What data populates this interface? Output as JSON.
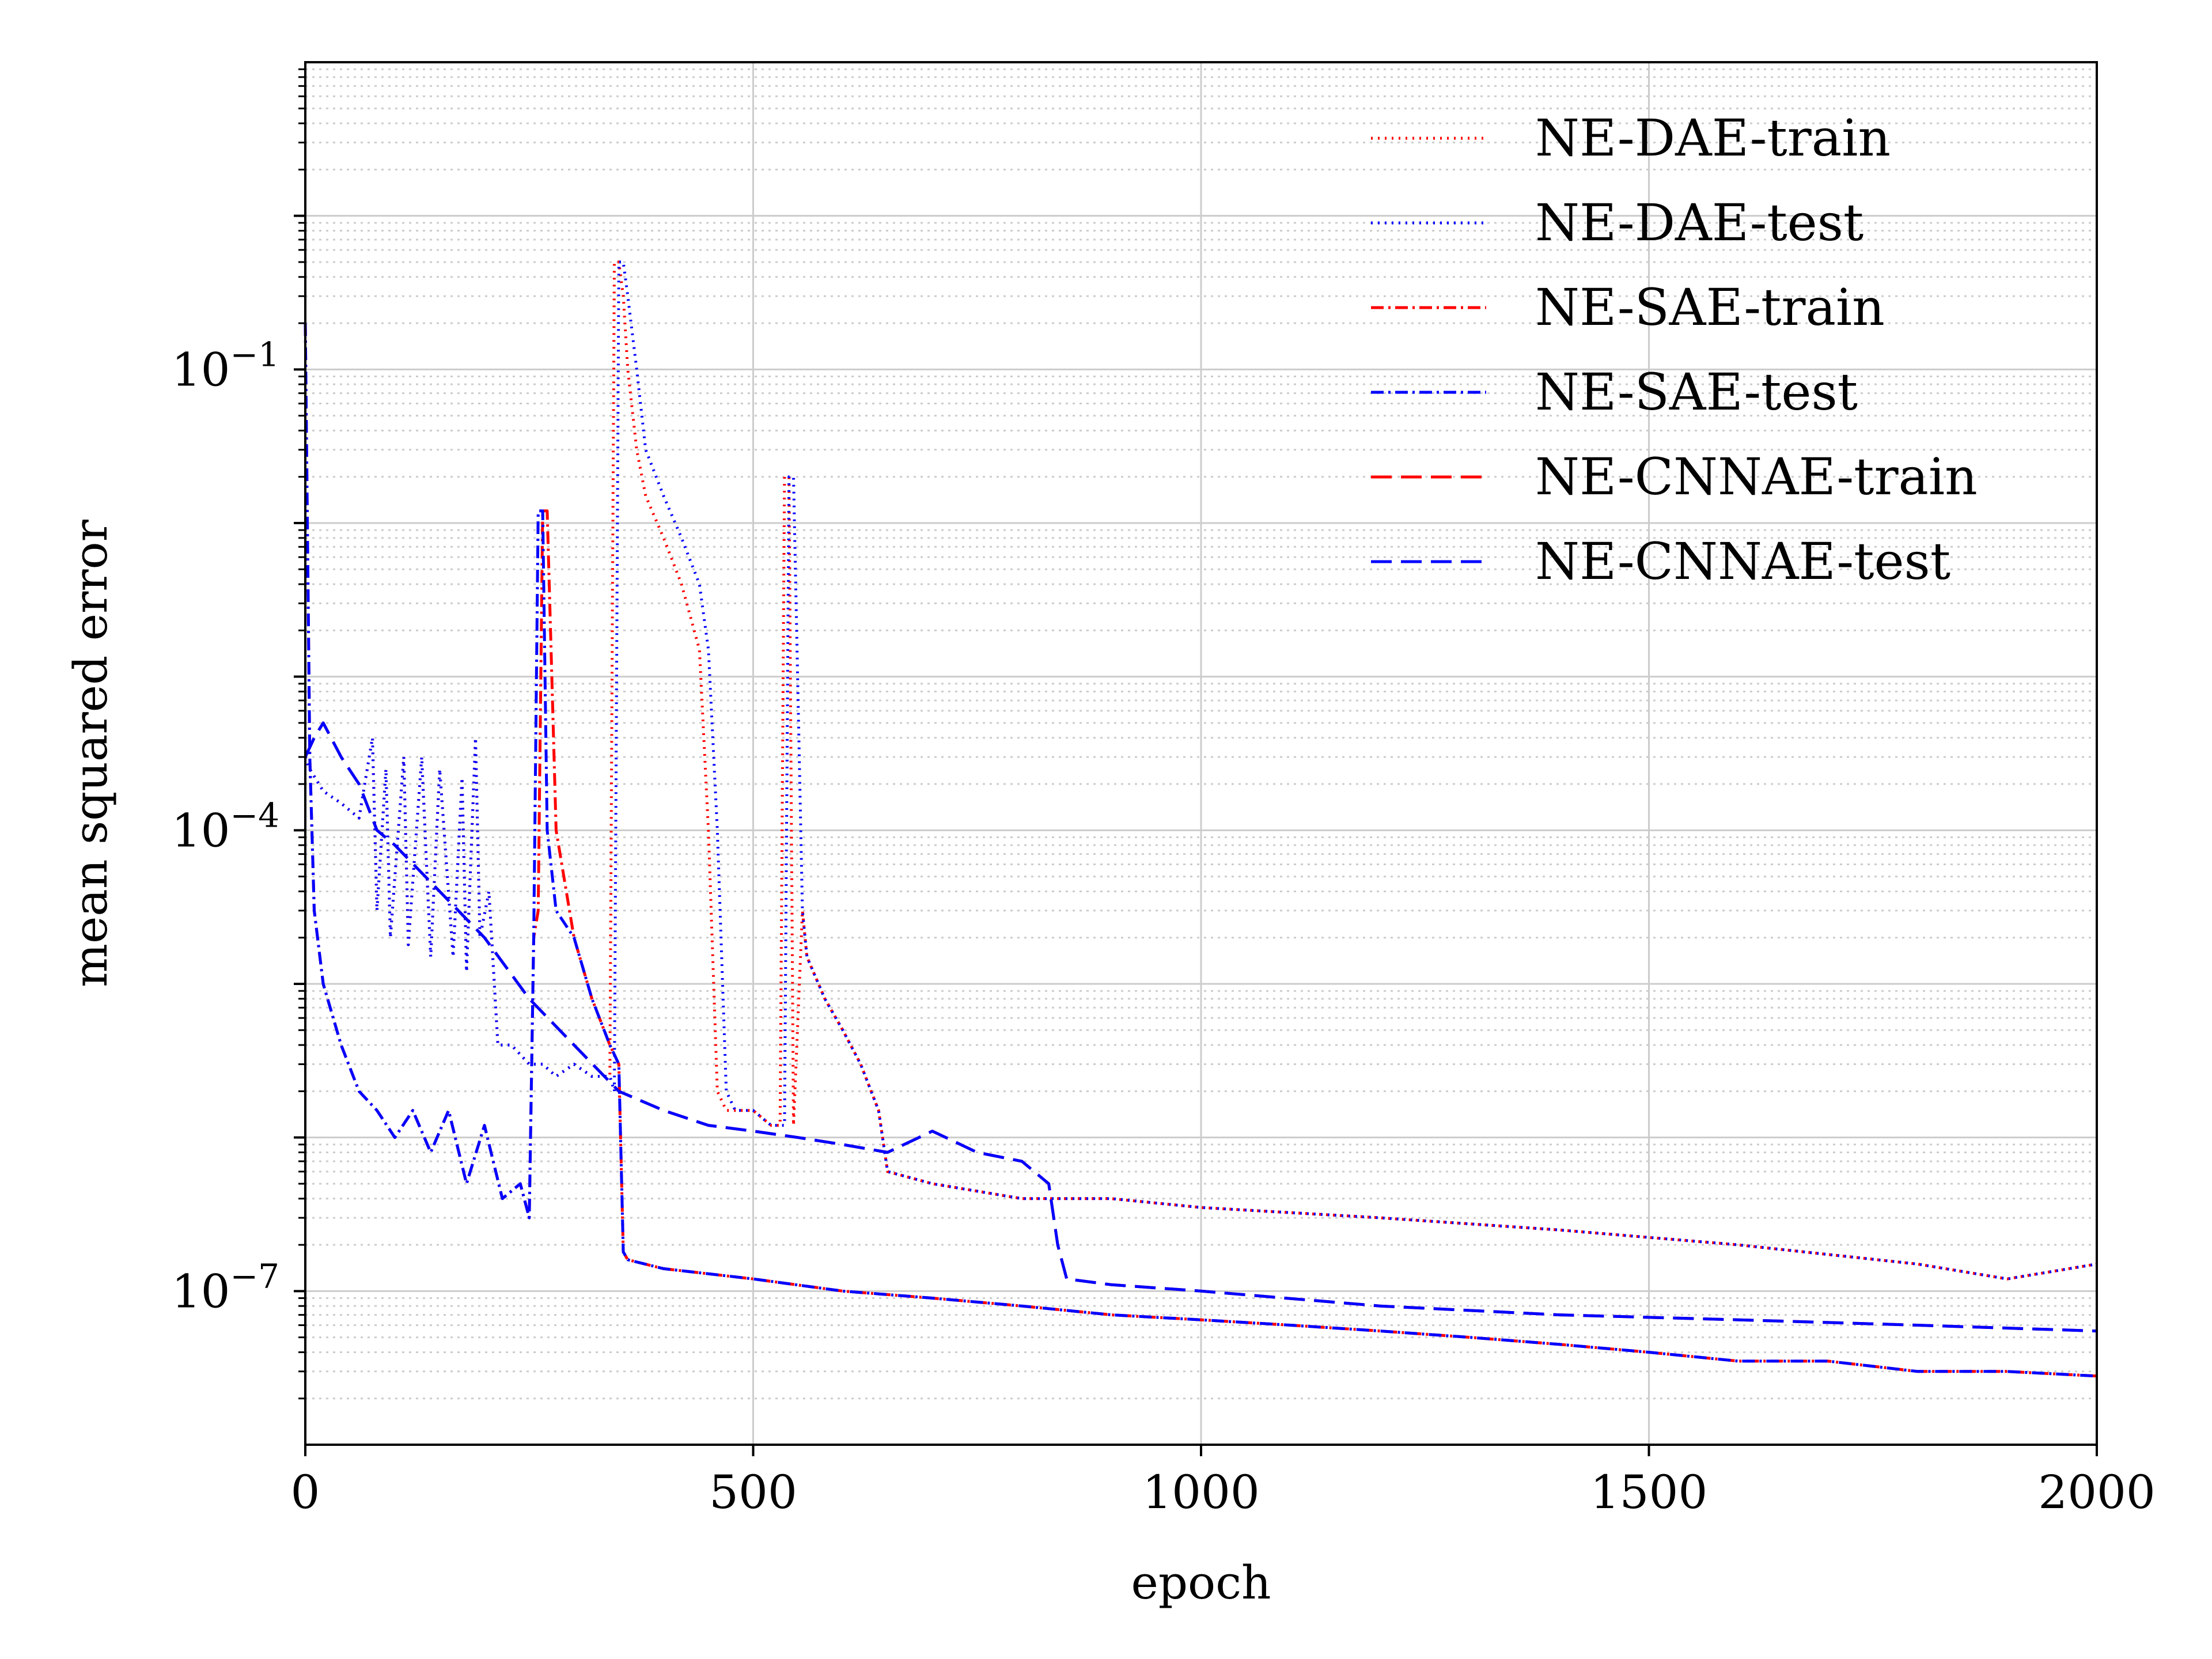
{
  "chart_data": {
    "type": "line",
    "xlabel": "epoch",
    "ylabel": "mean squared error",
    "yscale": "log",
    "xlim": [
      0,
      2000
    ],
    "ylim_exponent": [
      -8,
      1
    ],
    "x_ticks": [
      0,
      500,
      1000,
      1500,
      2000
    ],
    "x_tick_labels": [
      "0",
      "500",
      "1000",
      "1500",
      "2000"
    ],
    "y_tick_exponents": [
      -7,
      -4,
      -1
    ],
    "y_tick_labels": [
      {
        "base": "10",
        "exp": "−7"
      },
      {
        "base": "10",
        "exp": "−4"
      },
      {
        "base": "10",
        "exp": "−1"
      }
    ],
    "grid": true,
    "legend_position": "top-right",
    "series": [
      {
        "name": "NE-DAE-train",
        "color": "#ff0000",
        "dash": "dotted",
        "x": [
          0,
          5,
          20,
          40,
          60,
          75,
          80,
          90,
          95,
          110,
          115,
          130,
          140,
          150,
          165,
          175,
          180,
          190,
          195,
          205,
          215,
          220,
          230,
          250,
          265,
          280,
          300,
          320,
          340,
          345,
          350,
          355,
          360,
          370,
          380,
          400,
          420,
          440,
          450,
          460,
          470,
          480,
          500,
          520,
          530,
          535,
          540,
          545,
          555,
          560,
          580,
          600,
          620,
          640,
          650,
          700,
          800,
          900,
          1000,
          1200,
          1400,
          1600,
          1800,
          1900,
          2000
        ],
        "y": [
          0.0003,
          0.00025,
          0.00018,
          0.00015,
          0.00012,
          0.0004,
          3e-05,
          0.00025,
          2e-05,
          0.0003,
          1.8e-05,
          0.0003,
          1.5e-05,
          0.00025,
          1.5e-05,
          0.00022,
          1.2e-05,
          0.0004,
          2e-05,
          4e-05,
          4e-06,
          4e-06,
          4e-06,
          3e-06,
          3e-06,
          2.5e-06,
          3e-06,
          2.5e-06,
          2.5e-06,
          0.5,
          0.5,
          0.3,
          0.1,
          0.03,
          0.015,
          0.008,
          0.004,
          0.0015,
          0.0001,
          2e-06,
          1.5e-06,
          1.5e-06,
          1.5e-06,
          1.2e-06,
          1.2e-06,
          0.02,
          0.02,
          1.2e-06,
          3e-05,
          1.5e-05,
          8e-06,
          5e-06,
          3e-06,
          1.5e-06,
          6e-07,
          5e-07,
          4e-07,
          4e-07,
          3.5e-07,
          3e-07,
          2.5e-07,
          2e-07,
          1.5e-07,
          1.2e-07,
          1.5e-07
        ]
      },
      {
        "name": "NE-DAE-test",
        "color": "#0000ff",
        "dash": "dotted",
        "x": [
          0,
          5,
          20,
          40,
          60,
          75,
          80,
          90,
          95,
          110,
          115,
          130,
          140,
          150,
          165,
          175,
          180,
          190,
          195,
          205,
          215,
          220,
          230,
          250,
          265,
          280,
          300,
          320,
          340,
          345,
          350,
          355,
          360,
          370,
          380,
          400,
          420,
          440,
          450,
          460,
          470,
          480,
          500,
          520,
          530,
          535,
          540,
          545,
          555,
          560,
          580,
          600,
          620,
          640,
          650,
          700,
          800,
          900,
          1000,
          1200,
          1400,
          1600,
          1800,
          1900,
          2000
        ],
        "y": [
          0.0003,
          0.00025,
          0.00018,
          0.00015,
          0.00012,
          0.0004,
          3e-05,
          0.00025,
          2e-05,
          0.0003,
          1.8e-05,
          0.0003,
          1.5e-05,
          0.00025,
          1.5e-05,
          0.00022,
          1.2e-05,
          0.0004,
          2e-05,
          4e-05,
          4e-06,
          4e-06,
          4e-06,
          3e-06,
          3e-06,
          2.5e-06,
          3e-06,
          2.5e-06,
          2.5e-06,
          2e-06,
          0.5,
          0.5,
          0.3,
          0.1,
          0.03,
          0.015,
          0.008,
          0.004,
          0.0015,
          0.0001,
          2e-06,
          1.5e-06,
          1.5e-06,
          1.2e-06,
          1.2e-06,
          1.2e-06,
          0.02,
          0.02,
          3e-05,
          1.5e-05,
          8e-06,
          5e-06,
          3e-06,
          1.5e-06,
          6e-07,
          5e-07,
          4e-07,
          4e-07,
          3.5e-07,
          3e-07,
          2.5e-07,
          2e-07,
          1.5e-07,
          1.2e-07,
          1.5e-07
        ]
      },
      {
        "name": "NE-SAE-train",
        "color": "#ff0000",
        "dash": "dashdot",
        "x": [
          0,
          5,
          10,
          20,
          40,
          60,
          80,
          100,
          120,
          140,
          160,
          180,
          200,
          220,
          240,
          250,
          255,
          260,
          265,
          270,
          280,
          300,
          320,
          340,
          350,
          355,
          360,
          400,
          500,
          600,
          700,
          800,
          900,
          1000,
          1100,
          1200,
          1300,
          1400,
          1500,
          1600,
          1700,
          1800,
          1900,
          2000
        ],
        "y": [
          0.2,
          0.0003,
          3e-05,
          1e-05,
          4e-06,
          2e-06,
          1.5e-06,
          1e-06,
          1.5e-06,
          8e-07,
          1.5e-06,
          5e-07,
          1.2e-06,
          4e-07,
          5e-07,
          3e-07,
          2e-05,
          3e-05,
          0.012,
          0.012,
          0.0001,
          2e-05,
          8e-06,
          4e-06,
          3e-06,
          1.8e-07,
          1.6e-07,
          1.4e-07,
          1.2e-07,
          1e-07,
          9e-08,
          8e-08,
          7e-08,
          6.5e-08,
          6e-08,
          5.5e-08,
          5e-08,
          4.5e-08,
          4e-08,
          3.5e-08,
          3.5e-08,
          3e-08,
          3e-08,
          2.8e-08
        ]
      },
      {
        "name": "NE-SAE-test",
        "color": "#0000ff",
        "dash": "dashdot",
        "x": [
          0,
          5,
          10,
          20,
          40,
          60,
          80,
          100,
          120,
          140,
          160,
          180,
          200,
          220,
          240,
          250,
          255,
          260,
          265,
          270,
          280,
          300,
          320,
          340,
          350,
          355,
          360,
          400,
          500,
          600,
          700,
          800,
          900,
          1000,
          1100,
          1200,
          1300,
          1400,
          1500,
          1600,
          1700,
          1800,
          1900,
          2000
        ],
        "y": [
          0.2,
          0.0003,
          3e-05,
          1e-05,
          4e-06,
          2e-06,
          1.5e-06,
          1e-06,
          1.5e-06,
          8e-07,
          1.5e-06,
          5e-07,
          1.2e-06,
          4e-07,
          5e-07,
          3e-07,
          2e-05,
          0.012,
          0.012,
          0.0001,
          3e-05,
          2e-05,
          8e-06,
          4e-06,
          3e-06,
          1.8e-07,
          1.6e-07,
          1.4e-07,
          1.2e-07,
          1e-07,
          9e-08,
          8e-08,
          7e-08,
          6.5e-08,
          6e-08,
          5.5e-08,
          5e-08,
          4.5e-08,
          4e-08,
          3.5e-08,
          3.5e-08,
          3e-08,
          3e-08,
          2.8e-08
        ]
      },
      {
        "name": "NE-CNNAE-train",
        "color": "#ff0000",
        "dash": "dashed",
        "x": [
          0,
          10,
          20,
          40,
          60,
          80,
          100,
          150,
          200,
          250,
          300,
          350,
          400,
          450,
          500,
          550,
          600,
          650,
          700,
          750,
          800,
          830,
          840,
          850,
          900,
          1000,
          1200,
          1400,
          1600,
          1800,
          2000
        ],
        "y": [
          0.0003,
          0.0004,
          0.0005,
          0.0003,
          0.0002,
          0.0001,
          8e-05,
          4e-05,
          2e-05,
          8e-06,
          4e-06,
          2e-06,
          1.5e-06,
          1.2e-06,
          1.1e-06,
          1e-06,
          9e-07,
          8e-07,
          1.1e-06,
          8e-07,
          7e-07,
          5e-07,
          2e-07,
          1.2e-07,
          1.1e-07,
          1e-07,
          8e-08,
          7e-08,
          6.5e-08,
          6e-08,
          5.5e-08
        ]
      },
      {
        "name": "NE-CNNAE-test",
        "color": "#0000ff",
        "dash": "dashed",
        "x": [
          0,
          10,
          20,
          40,
          60,
          80,
          100,
          150,
          200,
          250,
          300,
          350,
          400,
          450,
          500,
          550,
          600,
          650,
          700,
          750,
          800,
          830,
          840,
          850,
          900,
          1000,
          1200,
          1400,
          1600,
          1800,
          2000
        ],
        "y": [
          0.0003,
          0.0004,
          0.0005,
          0.0003,
          0.0002,
          0.0001,
          8e-05,
          4e-05,
          2e-05,
          8e-06,
          4e-06,
          2e-06,
          1.5e-06,
          1.2e-06,
          1.1e-06,
          1e-06,
          9e-07,
          8e-07,
          1.1e-06,
          8e-07,
          7e-07,
          5e-07,
          2e-07,
          1.2e-07,
          1.1e-07,
          1e-07,
          8e-08,
          7e-08,
          6.5e-08,
          6e-08,
          5.5e-08
        ]
      }
    ]
  }
}
